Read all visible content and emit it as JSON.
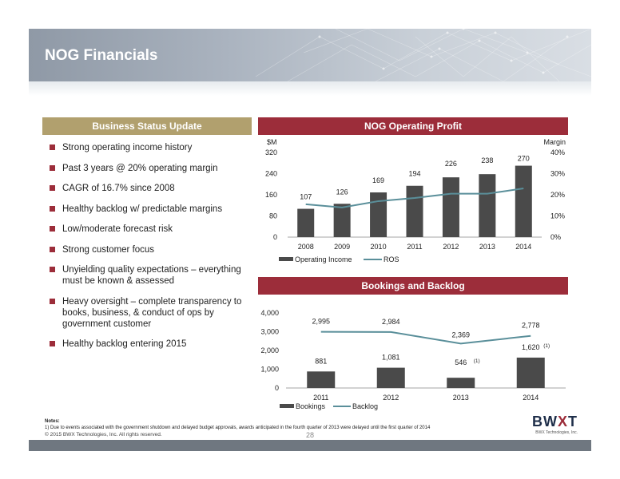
{
  "slide": {
    "title": "NOG Financials",
    "left_header": "Business Status Update",
    "bullets": [
      "Strong operating income history",
      "Past 3 years @ 20% operating margin",
      "CAGR of 16.7% since 2008",
      "Healthy backlog w/ predictable margins",
      "Low/moderate forecast risk",
      "Strong customer focus",
      "Unyielding quality expectations – everything must be known & assessed",
      "Heavy oversight – complete transparency to books, business, & conduct of ops by government customer",
      "Healthy backlog entering 2015"
    ],
    "notes_label": "Notes:",
    "note_1": "1)      Due to events associated with the government shutdown and delayed budget approvals, awards anticipated in the fourth quarter of 2013 were delayed until the first quarter of 2014",
    "copyright": "© 2015 BWX Technologies, Inc.  All rights reserved.",
    "page_number": "28",
    "logo_text_a": "BW",
    "logo_text_b": "X",
    "logo_text_c": "T",
    "logo_tagline": "BWX Technologies, Inc."
  },
  "colors": {
    "bar": "#4a4a4a",
    "line": "#5a8f9a",
    "accent_red": "#9c2d3a",
    "accent_tan": "#b1a06e"
  },
  "chart_data": [
    {
      "type": "bar",
      "title": "NOG Operating Profit",
      "categories": [
        "2008",
        "2009",
        "2010",
        "2011",
        "2012",
        "2013",
        "2014"
      ],
      "series": [
        {
          "name": "Operating Income",
          "type": "bar",
          "axis": "left",
          "values": [
            107,
            126,
            169,
            194,
            226,
            238,
            270
          ]
        },
        {
          "name": "ROS",
          "type": "line",
          "axis": "right",
          "values": [
            0.155,
            0.14,
            0.17,
            0.185,
            0.205,
            0.205,
            0.23
          ]
        }
      ],
      "ylabel": "$M",
      "ylabel_right": "Margin",
      "ylim": [
        0,
        320
      ],
      "yticks": [
        "0",
        "80",
        "160",
        "240",
        "320"
      ],
      "ylim_right": [
        0,
        0.4
      ],
      "yticks_right": [
        "0%",
        "10%",
        "20%",
        "30%",
        "40%"
      ],
      "bar_labels": [
        "107",
        "126",
        "169",
        "194",
        "226",
        "238",
        "270"
      ],
      "legend": "bottom",
      "grid": false
    },
    {
      "type": "bar",
      "title": "Bookings and Backlog",
      "categories": [
        "2011",
        "2012",
        "2013",
        "2014"
      ],
      "series": [
        {
          "name": "Bookings",
          "type": "bar",
          "values": [
            881,
            1081,
            546,
            1620
          ]
        },
        {
          "name": "Backlog",
          "type": "line",
          "values": [
            2995,
            2984,
            2369,
            2778
          ]
        }
      ],
      "ylim": [
        0,
        4000
      ],
      "yticks": [
        "0",
        "1,000",
        "2,000",
        "3,000",
        "4,000"
      ],
      "bar_labels": [
        "881",
        "1,081",
        "546",
        "1,620"
      ],
      "bar_label_notes": [
        "",
        "",
        "(1)",
        "(1)"
      ],
      "line_labels": [
        "2,995",
        "2,984",
        "2,369",
        "2,778"
      ],
      "legend": "bottom",
      "grid": false
    }
  ]
}
